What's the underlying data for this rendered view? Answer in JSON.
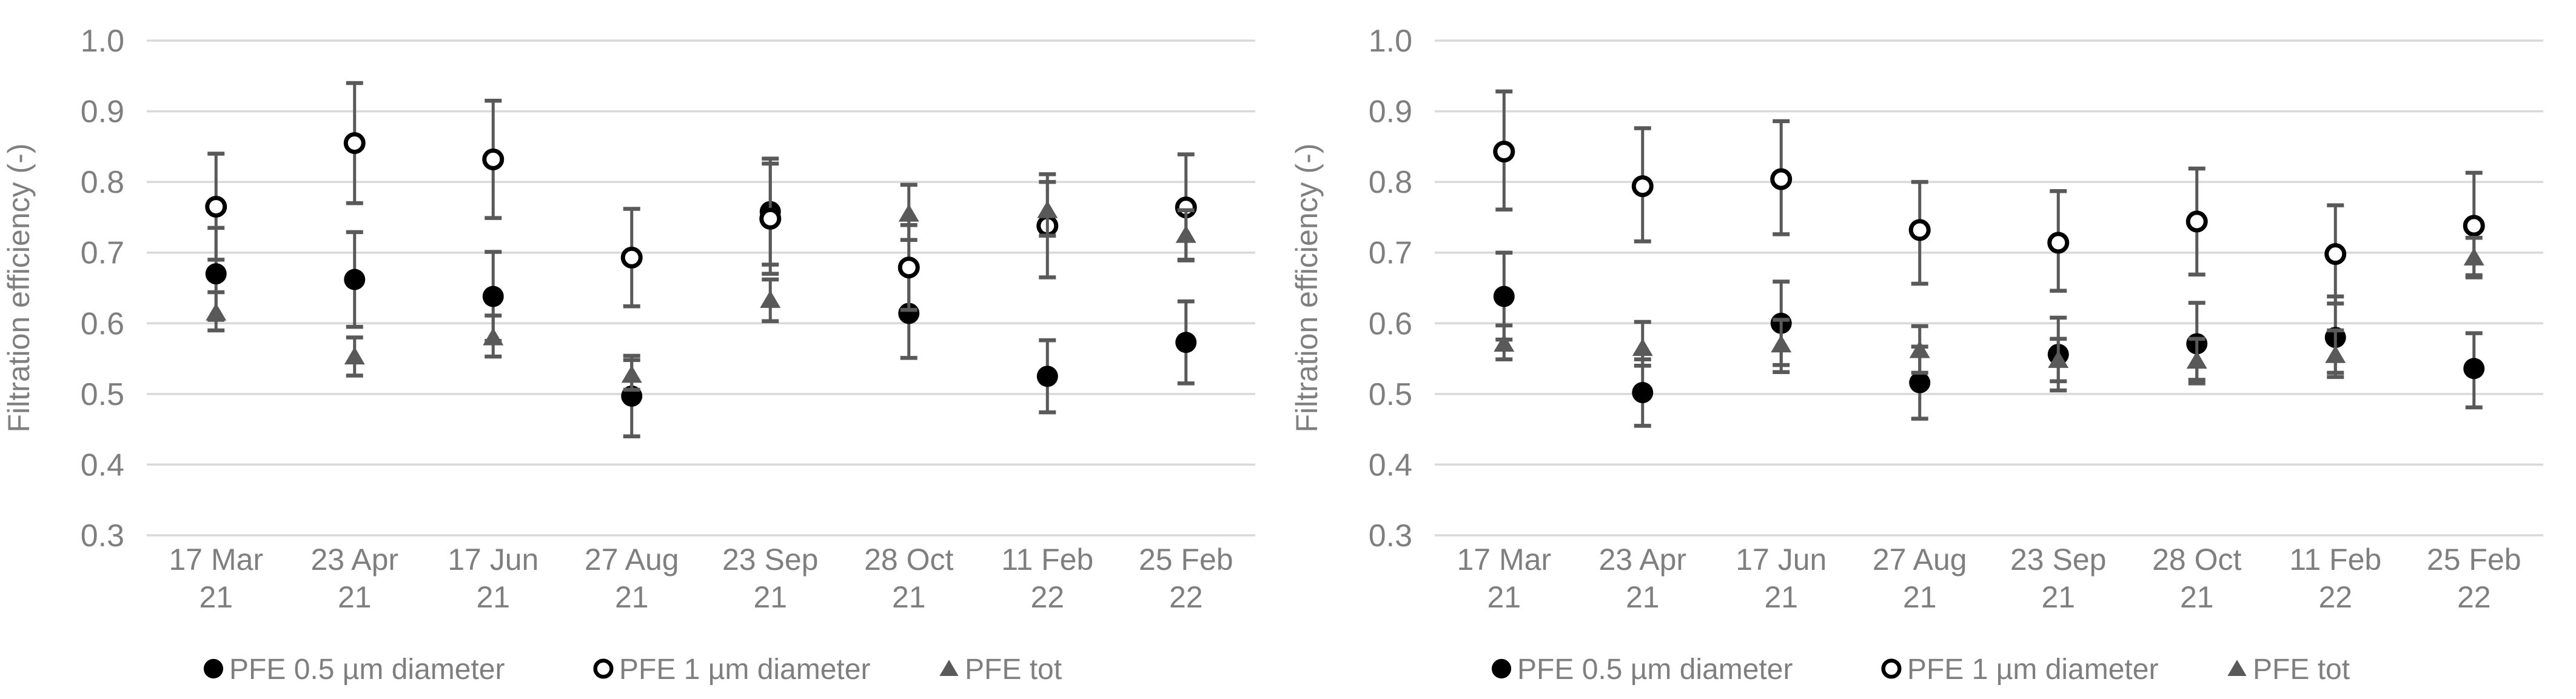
{
  "style": {
    "background": "#FFFFFF",
    "grid_color": "#D9D9D9",
    "error_bar_color": "#595959",
    "text_color": "#7F7F7F",
    "filled_marker_color": "#000000",
    "open_marker_stroke": "#000000",
    "open_marker_fill": "#FFFFFF",
    "triangle_color": "#595959"
  },
  "chart_data": [
    {
      "type": "scatter",
      "panel": "left",
      "ylabel": "Filtration efficiency (-)",
      "ylim": [
        0.3,
        1.0
      ],
      "ytick_step": 0.1,
      "yticks": [
        "1.0",
        "0.9",
        "0.8",
        "0.7",
        "0.6",
        "0.5",
        "0.4",
        "0.3"
      ],
      "grid": true,
      "legend_position": "bottom",
      "categories": [
        [
          "17 Mar",
          "21"
        ],
        [
          "23 Apr",
          "21"
        ],
        [
          "17 Jun",
          "21"
        ],
        [
          "27 Aug",
          "21"
        ],
        [
          "23 Sep",
          "21"
        ],
        [
          "28 Oct",
          "21"
        ],
        [
          "11 Feb",
          "22"
        ],
        [
          "25 Feb",
          "22"
        ]
      ],
      "series": [
        {
          "name": "PFE 0.5 µm diameter",
          "marker": "filled-circle",
          "values": [
            0.67,
            0.662,
            0.638,
            0.497,
            0.758,
            0.614,
            0.525,
            0.573
          ],
          "err_lo": [
            0.605,
            0.595,
            0.575,
            0.44,
            0.683,
            0.551,
            0.474,
            0.515
          ],
          "err_hi": [
            0.735,
            0.729,
            0.701,
            0.554,
            0.833,
            0.677,
            0.576,
            0.631
          ]
        },
        {
          "name": "PFE 1 µm diameter",
          "marker": "open-circle",
          "values": [
            0.765,
            0.855,
            0.832,
            0.693,
            0.748,
            0.679,
            0.738,
            0.764
          ],
          "err_lo": [
            0.69,
            0.77,
            0.749,
            0.624,
            0.67,
            0.619,
            0.665,
            0.689
          ],
          "err_hi": [
            0.84,
            0.94,
            0.915,
            0.762,
            0.826,
            0.739,
            0.811,
            0.839
          ]
        },
        {
          "name": "PFE tot",
          "marker": "filled-triangle",
          "values": [
            0.615,
            0.553,
            0.58,
            0.527,
            0.633,
            0.755,
            0.76,
            0.725
          ],
          "err_lo": [
            0.59,
            0.526,
            0.553,
            0.506,
            0.603,
            0.718,
            0.724,
            0.69
          ],
          "err_hi": [
            0.644,
            0.58,
            0.611,
            0.548,
            0.662,
            0.796,
            0.8,
            0.76
          ]
        }
      ]
    },
    {
      "type": "scatter",
      "panel": "right",
      "ylabel": "Filtration efficiency (-)",
      "ylim": [
        0.3,
        1.0
      ],
      "ytick_step": 0.1,
      "yticks": [
        "1.0",
        "0.9",
        "0.8",
        "0.7",
        "0.6",
        "0.5",
        "0.4",
        "0.3"
      ],
      "grid": true,
      "legend_position": "bottom",
      "categories": [
        [
          "17 Mar",
          "21"
        ],
        [
          "23 Apr",
          "21"
        ],
        [
          "17 Jun",
          "21"
        ],
        [
          "27 Aug",
          "21"
        ],
        [
          "23 Sep",
          "21"
        ],
        [
          "28 Oct",
          "21"
        ],
        [
          "11 Feb",
          "22"
        ],
        [
          "25 Feb",
          "22"
        ]
      ],
      "series": [
        {
          "name": "PFE 0.5 µm diameter",
          "marker": "filled-circle",
          "values": [
            0.638,
            0.502,
            0.6,
            0.516,
            0.556,
            0.571,
            0.58,
            0.536
          ],
          "err_lo": [
            0.577,
            0.455,
            0.541,
            0.465,
            0.505,
            0.515,
            0.524,
            0.481
          ],
          "err_hi": [
            0.7,
            0.549,
            0.659,
            0.567,
            0.608,
            0.629,
            0.638,
            0.586
          ]
        },
        {
          "name": "PFE 1 µm diameter",
          "marker": "open-circle",
          "values": [
            0.843,
            0.794,
            0.804,
            0.732,
            0.714,
            0.744,
            0.698,
            0.738
          ],
          "err_lo": [
            0.761,
            0.716,
            0.726,
            0.656,
            0.646,
            0.669,
            0.628,
            0.668
          ],
          "err_hi": [
            0.928,
            0.876,
            0.886,
            0.8,
            0.787,
            0.819,
            0.767,
            0.813
          ]
        },
        {
          "name": "PFE tot",
          "marker": "filled-triangle",
          "values": [
            0.571,
            0.565,
            0.57,
            0.562,
            0.548,
            0.547,
            0.555,
            0.693
          ],
          "err_lo": [
            0.549,
            0.54,
            0.531,
            0.53,
            0.518,
            0.52,
            0.53,
            0.665
          ],
          "err_hi": [
            0.597,
            0.602,
            0.605,
            0.596,
            0.578,
            0.578,
            0.59,
            0.721
          ]
        }
      ]
    }
  ]
}
